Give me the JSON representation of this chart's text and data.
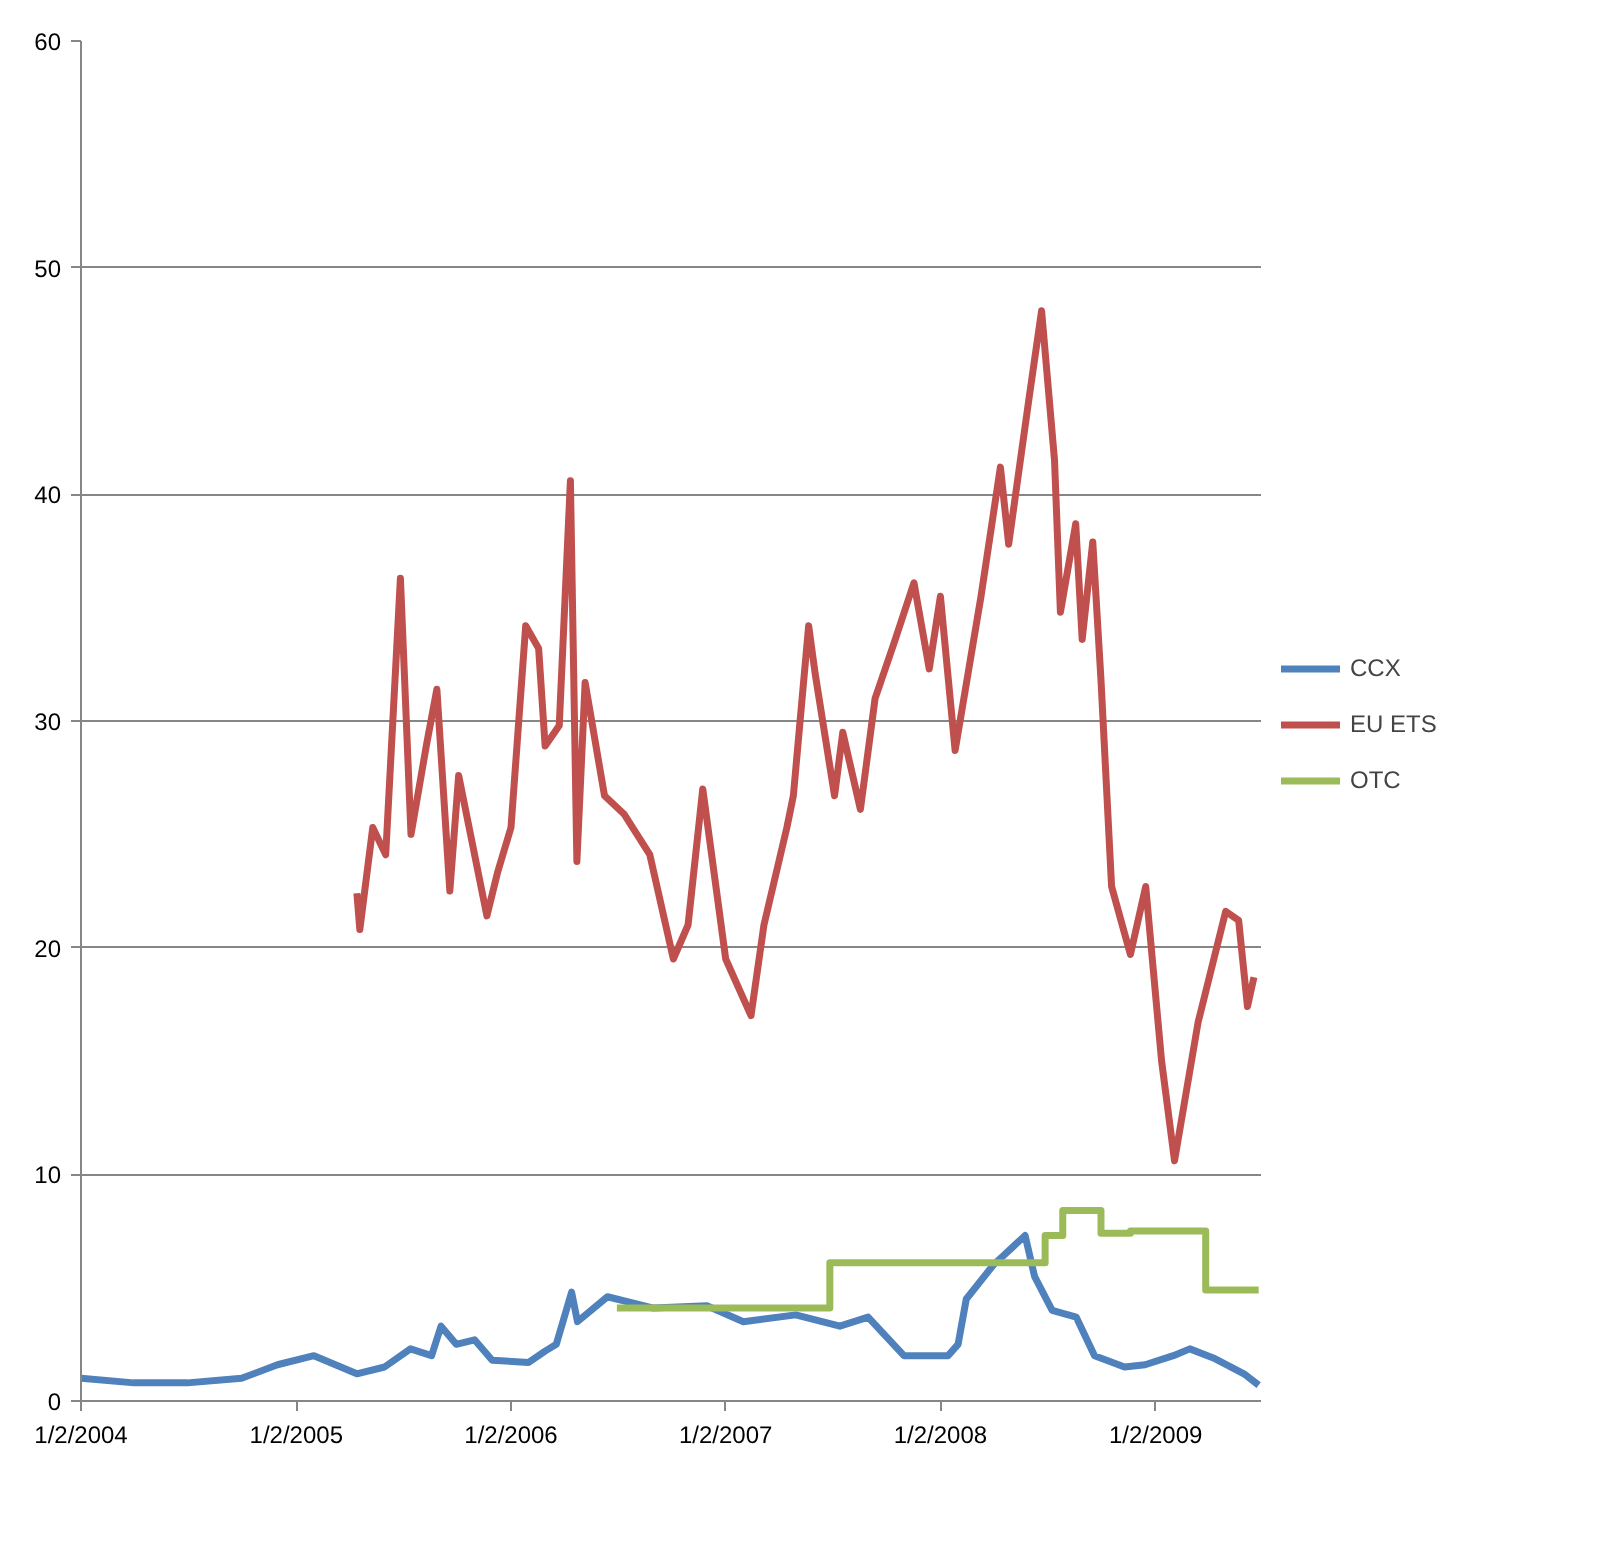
{
  "chart_data": {
    "type": "line",
    "xlim": [
      "2004-01-02",
      "2009-06-30"
    ],
    "xticks": [
      {
        "value": "2004-01-02",
        "label": "1/2/2004"
      },
      {
        "value": "2005-01-02",
        "label": "1/2/2005"
      },
      {
        "value": "2006-01-02",
        "label": "1/2/2006"
      },
      {
        "value": "2007-01-02",
        "label": "1/2/2007"
      },
      {
        "value": "2008-01-02",
        "label": "1/2/2008"
      },
      {
        "value": "2009-01-02",
        "label": "1/2/2009"
      }
    ],
    "ylim": [
      0,
      60
    ],
    "yticks": [
      0,
      10,
      20,
      30,
      40,
      50,
      60
    ],
    "grid": "y",
    "legend": "right",
    "line_style": "solid",
    "marker": "none",
    "series": [
      {
        "name": "CCX",
        "color": "#4f81bd",
        "x": [
          "2004-01-02",
          "2004-04-01",
          "2004-07-01",
          "2004-10-01",
          "2004-12-01",
          "2005-02-01",
          "2005-04-15",
          "2005-06-01",
          "2005-07-15",
          "2005-08-20",
          "2005-09-05",
          "2005-10-01",
          "2005-11-01",
          "2005-12-01",
          "2006-02-01",
          "2006-03-01",
          "2006-03-20",
          "2006-04-15",
          "2006-04-25",
          "2006-06-15",
          "2006-09-01",
          "2006-12-01",
          "2007-02-01",
          "2007-05-01",
          "2007-07-15",
          "2007-09-01",
          "2007-11-01",
          "2008-01-15",
          "2008-02-01",
          "2008-02-15",
          "2008-04-01",
          "2008-05-25",
          "2008-06-10",
          "2008-07-10",
          "2008-08-20",
          "2008-09-20",
          "2008-11-10",
          "2008-12-15",
          "2009-02-01",
          "2009-03-01",
          "2009-04-10",
          "2009-06-01",
          "2009-06-26"
        ],
        "values": [
          1.0,
          0.8,
          0.8,
          1.0,
          1.6,
          2.0,
          1.2,
          1.5,
          2.3,
          2.0,
          3.3,
          2.5,
          2.7,
          1.8,
          1.7,
          2.2,
          2.5,
          4.8,
          3.5,
          4.6,
          4.1,
          4.2,
          3.5,
          3.8,
          3.3,
          3.7,
          2.0,
          2.0,
          2.5,
          4.5,
          6.0,
          7.3,
          5.5,
          4.0,
          3.7,
          2.0,
          1.5,
          1.6,
          2.0,
          2.3,
          1.9,
          1.2,
          0.7
        ]
      },
      {
        "name": "EU ETS",
        "color": "#c0504d",
        "x": [
          "2005-04-15",
          "2005-04-20",
          "2005-05-12",
          "2005-06-03",
          "2005-06-28",
          "2005-07-16",
          "2005-08-11",
          "2005-08-29",
          "2005-09-20",
          "2005-10-05",
          "2005-11-22",
          "2005-12-10",
          "2006-01-02",
          "2006-01-27",
          "2006-02-18",
          "2006-03-01",
          "2006-03-25",
          "2006-04-13",
          "2006-04-24",
          "2006-05-08",
          "2006-06-10",
          "2006-07-13",
          "2006-08-26",
          "2006-10-05",
          "2006-10-30",
          "2006-11-24",
          "2007-01-02",
          "2007-02-14",
          "2007-03-08",
          "2007-04-16",
          "2007-04-27",
          "2007-05-23",
          "2007-06-03",
          "2007-07-06",
          "2007-07-20",
          "2007-08-19",
          "2007-09-13",
          "2007-10-16",
          "2007-11-18",
          "2007-12-14",
          "2008-01-02",
          "2008-01-27",
          "2008-03-11",
          "2008-04-13",
          "2008-04-27",
          "2008-06-01",
          "2008-06-22",
          "2008-07-14",
          "2008-07-24",
          "2008-08-19",
          "2008-08-30",
          "2008-09-17",
          "2008-10-01",
          "2008-10-19",
          "2008-11-20",
          "2008-12-16",
          "2009-01-12",
          "2009-02-03",
          "2009-03-15",
          "2009-05-01",
          "2009-05-23",
          "2009-06-07",
          "2009-06-18"
        ],
        "values": [
          22.4,
          20.8,
          25.3,
          24.1,
          36.3,
          25.0,
          28.9,
          31.4,
          22.5,
          27.6,
          21.4,
          23.3,
          25.3,
          34.2,
          33.2,
          28.9,
          29.8,
          40.6,
          23.8,
          31.7,
          26.7,
          25.9,
          24.1,
          19.5,
          21.0,
          27.0,
          19.5,
          17.0,
          21.0,
          25.3,
          26.7,
          34.2,
          32.1,
          26.7,
          29.5,
          26.1,
          31.0,
          33.5,
          36.1,
          32.3,
          35.5,
          28.7,
          35.5,
          41.2,
          37.8,
          44.3,
          48.1,
          41.5,
          34.8,
          38.7,
          33.6,
          37.9,
          31.8,
          22.7,
          19.7,
          22.7,
          15.0,
          10.6,
          16.7,
          21.6,
          21.2,
          17.4,
          18.7
        ]
      },
      {
        "name": "OTC",
        "color": "#9bbb59",
        "type": "step",
        "x": [
          "2006-07-01",
          "2007-06-28",
          "2008-06-28",
          "2008-07-28",
          "2008-10-01",
          "2008-11-20",
          "2009-03-28",
          "2009-06-26"
        ],
        "values": [
          4.1,
          6.1,
          7.3,
          8.4,
          7.4,
          7.5,
          4.9,
          4.9
        ]
      }
    ]
  }
}
